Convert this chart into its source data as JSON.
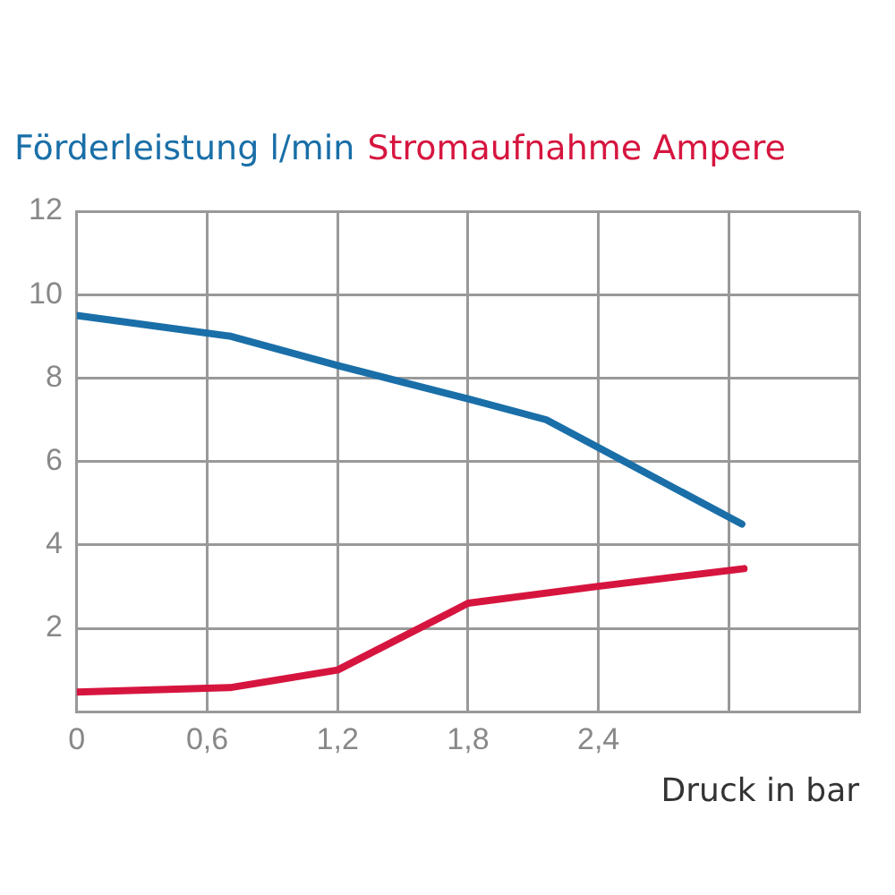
{
  "chart_data": {
    "type": "line",
    "xlabel": "Druck in bar",
    "xlim": [
      0,
      3.6
    ],
    "xticks": [
      0,
      {
        "value": 0.6,
        "label": "0,6"
      },
      {
        "value": 1.2,
        "label": "1,2"
      },
      {
        "value": 1.8,
        "label": "1,8"
      },
      {
        "value": 2.4,
        "label": "2,4"
      },
      {
        "value": 3.0,
        "label": null
      },
      {
        "value": 3.6,
        "label": null
      }
    ],
    "ylim": [
      0,
      12
    ],
    "yticks": [
      {
        "value": 0,
        "label": null
      },
      2,
      4,
      6,
      8,
      10,
      12
    ],
    "grid": true,
    "legend": "top left",
    "marker": "none",
    "line_style": "solid",
    "series": [
      {
        "name": "Förderleistung l/min",
        "color": "#1a6fa8",
        "x": [
          0,
          0.71,
          1.2,
          1.8,
          2.16,
          3.06
        ],
        "values": [
          9.5,
          9.0,
          8.3,
          7.5,
          7.0,
          4.5
        ]
      },
      {
        "name": "Stromaufnahme Ampere",
        "color": "#d6153f",
        "x": [
          0,
          0.71,
          1.2,
          1.8,
          2.39,
          3.07
        ],
        "values": [
          0.47,
          0.58,
          1.0,
          2.6,
          3.0,
          3.43
        ]
      }
    ]
  }
}
